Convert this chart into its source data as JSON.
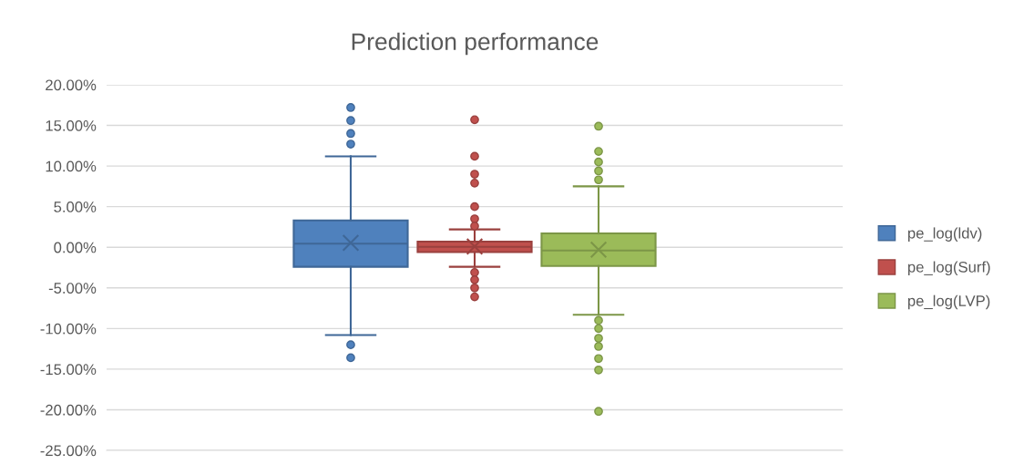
{
  "chart_data": {
    "type": "box",
    "title": "Prediction performance",
    "categories": [
      null
    ],
    "ylim": [
      -25,
      20
    ],
    "yticks": [
      {
        "value": -25,
        "label": "-25.00%"
      },
      {
        "value": -20,
        "label": "-20.00%"
      },
      {
        "value": -15,
        "label": "-15.00%"
      },
      {
        "value": -10,
        "label": "-10.00%"
      },
      {
        "value": -5,
        "label": "-5.00%"
      },
      {
        "value": 0,
        "label": "0.00%"
      },
      {
        "value": 5,
        "label": "5.00%"
      },
      {
        "value": 10,
        "label": "10.00%"
      },
      {
        "value": 15,
        "label": "15.00%"
      },
      {
        "value": 20,
        "label": "20.00%"
      }
    ],
    "grid": "y",
    "legend": "right",
    "series": [
      {
        "name": "pe_log(ldv)",
        "color": "#4f81bd",
        "boxes": [
          {
            "low": -10.8,
            "q1": -2.4,
            "median": 0.45,
            "q3": 3.3,
            "high": 11.2,
            "mean": 0.55,
            "outliers": [
              17.2,
              15.6,
              14.0,
              12.7,
              -12.0,
              -13.6
            ]
          }
        ]
      },
      {
        "name": "pe_log(Surf)",
        "color": "#c0504d",
        "boxes": [
          {
            "low": -2.4,
            "q1": -0.6,
            "median": 0.05,
            "q3": 0.7,
            "high": 2.2,
            "mean": 0.1,
            "outliers": [
              15.7,
              11.2,
              9.0,
              7.9,
              5.0,
              3.5,
              2.6,
              -3.1,
              -4.0,
              -5.0,
              -6.1
            ]
          }
        ]
      },
      {
        "name": "pe_log(LVP)",
        "color": "#9bbb59",
        "boxes": [
          {
            "low": -8.3,
            "q1": -2.3,
            "median": -0.4,
            "q3": 1.7,
            "high": 7.5,
            "mean": -0.3,
            "outliers": [
              14.9,
              11.8,
              10.5,
              9.4,
              8.3,
              -9.0,
              -10.0,
              -11.2,
              -12.2,
              -13.7,
              -15.1,
              -20.2
            ]
          }
        ]
      }
    ]
  }
}
